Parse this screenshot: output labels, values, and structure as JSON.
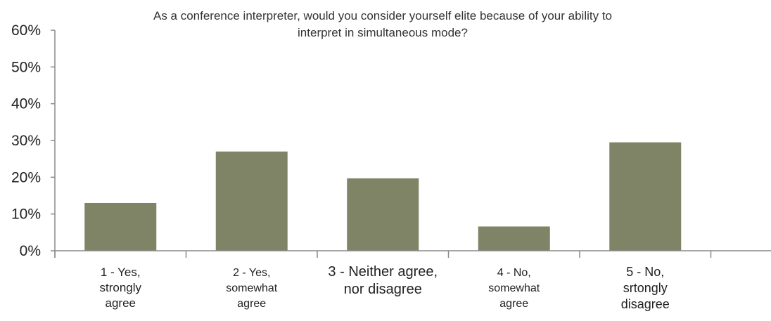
{
  "chart_data": {
    "type": "bar",
    "title_lines": [
      "As a conference interpreter, would you consider yourself elite because of your ability to",
      "interpret in simultaneous mode?"
    ],
    "categories": [
      [
        "1 - Yes,",
        "strongly",
        "agree"
      ],
      [
        "2 - Yes,",
        "somewhat",
        "agree"
      ],
      [
        "3 - Neither agree,",
        "nor disagree"
      ],
      [
        "4 - No,",
        "somewhat",
        "agree"
      ],
      [
        "5 - No,",
        "srtongly",
        "disagree"
      ]
    ],
    "values": [
      13,
      27,
      19.7,
      6.6,
      29.5
    ],
    "ylim": [
      0,
      60
    ],
    "yticks": [
      "0%",
      "10%",
      "20%",
      "30%",
      "40%",
      "50%",
      "60%"
    ],
    "bar_color": "#7f8466",
    "axis_color": "#8a8a8a",
    "grid": false,
    "legend": "none",
    "xlabel": "",
    "ylabel": ""
  }
}
